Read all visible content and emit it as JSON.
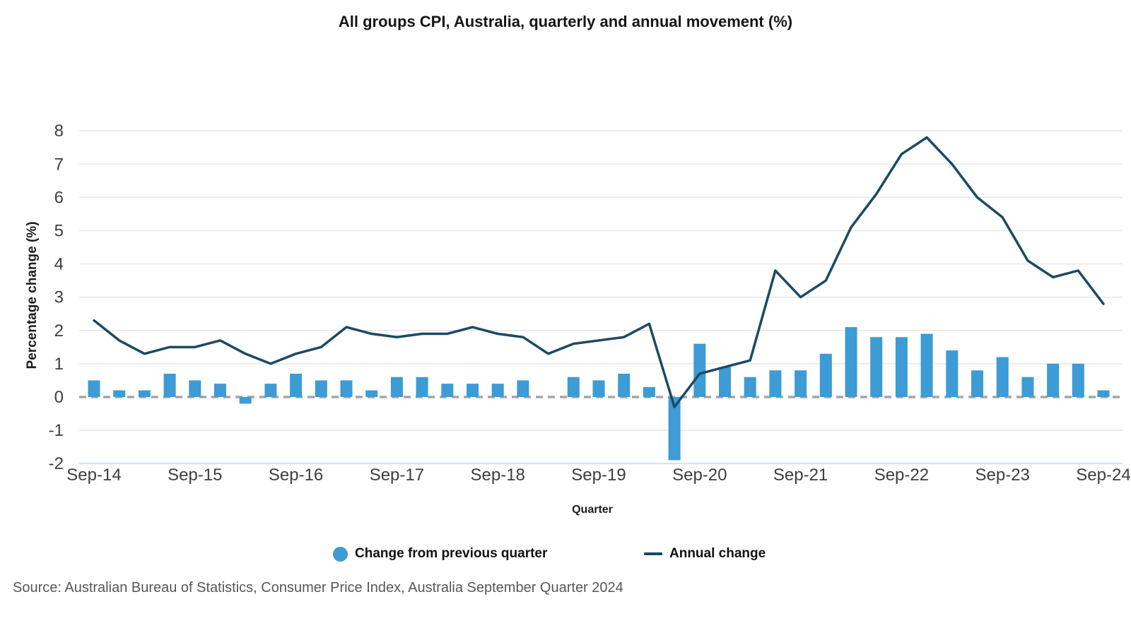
{
  "title": "All groups CPI, Australia, quarterly and annual movement (%)",
  "y_axis": {
    "label": "Percentage change (%)",
    "ticks": [
      8,
      7,
      6,
      5,
      4,
      3,
      2,
      1,
      0,
      -1,
      -2
    ]
  },
  "x_axis": {
    "label": "Quarter",
    "tick_labels": [
      "Sep-14",
      "Sep-15",
      "Sep-16",
      "Sep-17",
      "Sep-18",
      "Sep-19",
      "Sep-20",
      "Sep-21",
      "Sep-22",
      "Sep-23",
      "Sep-24"
    ]
  },
  "legend": [
    {
      "label": "Change from previous quarter",
      "marker": "circle",
      "color": "#3d9bd5"
    },
    {
      "label": "Annual change",
      "marker": "line",
      "color": "#1b4a63"
    }
  ],
  "source": "Source: Australian Bureau of Statistics, Consumer Price Index, Australia September Quarter 2024",
  "colors": {
    "bar": "#3d9bd5",
    "line": "#1b4a63",
    "gridline": "#e7e7e7",
    "zero_line": "#a5a5a5",
    "axis_line": "#cfe0ee",
    "tick_text": "#3e3e3e"
  },
  "chart_data": {
    "type": "bar",
    "title": "All groups CPI, Australia, quarterly and annual movement (%)",
    "xlabel": "Quarter",
    "ylabel": "Percentage change (%)",
    "ylim": [
      -2,
      8
    ],
    "yticks": [
      -2,
      -1,
      0,
      1,
      2,
      3,
      4,
      5,
      6,
      7,
      8
    ],
    "grid": true,
    "legend_position": "bottom",
    "x_tick_every": 4,
    "categories": [
      "Sep-14",
      "Dec-14",
      "Mar-15",
      "Jun-15",
      "Sep-15",
      "Dec-15",
      "Mar-16",
      "Jun-16",
      "Sep-16",
      "Dec-16",
      "Mar-17",
      "Jun-17",
      "Sep-17",
      "Dec-17",
      "Mar-18",
      "Jun-18",
      "Sep-18",
      "Dec-18",
      "Mar-19",
      "Jun-19",
      "Sep-19",
      "Dec-19",
      "Mar-20",
      "Jun-20",
      "Sep-20",
      "Dec-20",
      "Mar-21",
      "Jun-21",
      "Sep-21",
      "Dec-21",
      "Mar-22",
      "Jun-22",
      "Sep-22",
      "Dec-22",
      "Mar-23",
      "Jun-23",
      "Sep-23",
      "Dec-23",
      "Mar-24",
      "Jun-24",
      "Sep-24"
    ],
    "series": [
      {
        "name": "Change from previous quarter",
        "type": "bar",
        "color": "#3d9bd5",
        "values": [
          0.5,
          0.2,
          0.2,
          0.7,
          0.5,
          0.4,
          -0.2,
          0.4,
          0.7,
          0.5,
          0.5,
          0.2,
          0.6,
          0.6,
          0.4,
          0.4,
          0.4,
          0.5,
          0.0,
          0.6,
          0.5,
          0.7,
          0.3,
          -1.9,
          1.6,
          0.9,
          0.6,
          0.8,
          0.8,
          1.3,
          2.1,
          1.8,
          1.8,
          1.9,
          1.4,
          0.8,
          1.2,
          0.6,
          1.0,
          1.0,
          0.2
        ]
      },
      {
        "name": "Annual change",
        "type": "line",
        "color": "#1b4a63",
        "values": [
          2.3,
          1.7,
          1.3,
          1.5,
          1.5,
          1.7,
          1.3,
          1.0,
          1.3,
          1.5,
          2.1,
          1.9,
          1.8,
          1.9,
          1.9,
          2.1,
          1.9,
          1.8,
          1.3,
          1.6,
          1.7,
          1.8,
          2.2,
          -0.3,
          0.7,
          0.9,
          1.1,
          3.8,
          3.0,
          3.5,
          5.1,
          6.1,
          7.3,
          7.8,
          7.0,
          6.0,
          5.4,
          4.1,
          3.6,
          3.8,
          2.8
        ]
      }
    ]
  }
}
